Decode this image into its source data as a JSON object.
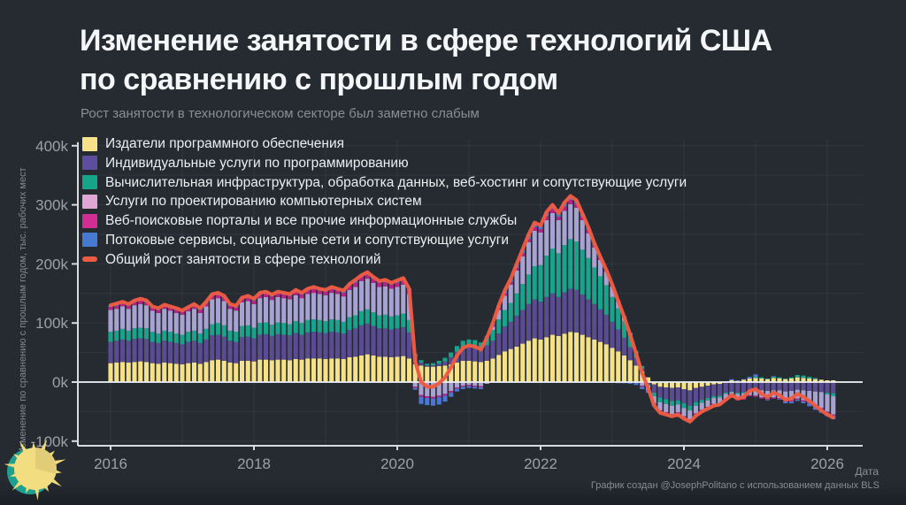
{
  "title": {
    "line1": "Изменение занятости в сфере технологий США",
    "line2": "по сравнению с прошлым годом"
  },
  "subtitle": "Рост занятости в технологическом секторе был заметно слабым",
  "credit": "График создан @JosephPolitano с использованием данных BLS",
  "axes": {
    "y_label": "Изменение по сравнению с прошлым годом, тыс. рабочих мест",
    "x_label": "Дата",
    "y_ticks": [
      {
        "label": "400k",
        "value": 400
      },
      {
        "label": "300k",
        "value": 300
      },
      {
        "label": "200k",
        "value": 200
      },
      {
        "label": "100k",
        "value": 100
      },
      {
        "label": "0k",
        "value": 0
      },
      {
        "label": "-100k",
        "value": -100
      }
    ],
    "x_ticks": [
      {
        "label": "2016",
        "value": 2016
      },
      {
        "label": "2018",
        "value": 2018
      },
      {
        "label": "2020",
        "value": 2020
      },
      {
        "label": "2022",
        "value": 2022
      },
      {
        "label": "2024",
        "value": 2024
      },
      {
        "label": "2026",
        "value": 2026
      }
    ]
  },
  "colors": {
    "background": "#262b32",
    "grid": "#ffffff",
    "zero_line": "#e8ebee",
    "axis_spine": "#d8dcdf",
    "tick_text": "#99a1a9"
  },
  "chart_data": {
    "type": "bar",
    "stacked": true,
    "overlay_line": true,
    "x_start": "2016-01",
    "x_interval": "monthly",
    "n_points": 122,
    "ylim": [
      -108,
      408
    ],
    "y_units": "thousands of jobs, change vs year ago",
    "grid": {
      "vertical": "every year",
      "horizontal_step_k": 50
    },
    "legend_position": "top-left overlay",
    "series": [
      {
        "name": "Издатели программного обеспечения",
        "color": "#f5e187",
        "legend_color": "#f7e28a",
        "values": [
          32,
          33,
          34,
          33,
          34,
          35,
          34,
          32,
          31,
          33,
          32,
          31,
          30,
          32,
          33,
          31,
          34,
          37,
          38,
          36,
          33,
          32,
          36,
          36,
          35,
          38,
          38,
          37,
          38,
          38,
          37,
          39,
          38,
          40,
          40,
          40,
          39,
          40,
          40,
          39,
          42,
          43,
          45,
          47,
          45,
          43,
          43,
          42,
          43,
          44,
          40,
          30,
          28,
          26,
          26,
          27,
          28,
          30,
          33,
          36,
          36,
          35,
          34,
          36,
          40,
          46,
          52,
          56,
          60,
          65,
          70,
          74,
          72,
          76,
          80,
          78,
          82,
          85,
          84,
          80,
          76,
          72,
          68,
          64,
          58,
          52,
          45,
          37,
          28,
          18,
          8,
          -4,
          -8,
          -9,
          -10,
          -9,
          -12,
          -14,
          -10,
          -8,
          -6,
          -4,
          -3,
          0,
          3,
          2,
          4,
          6,
          7,
          6,
          5,
          7,
          6,
          5,
          6,
          8,
          7,
          6,
          5,
          4,
          3,
          3
        ]
      },
      {
        "name": "Индивидуальные услуги по программированию",
        "color": "#5a4b92",
        "legend_color": "#5d4e9e",
        "values": [
          36,
          37,
          38,
          37,
          39,
          39,
          39,
          36,
          35,
          37,
          36,
          35,
          34,
          36,
          37,
          35,
          38,
          42,
          42,
          41,
          37,
          36,
          40,
          41,
          39,
          42,
          43,
          41,
          43,
          42,
          42,
          44,
          42,
          44,
          45,
          44,
          44,
          45,
          44,
          43,
          46,
          48,
          51,
          52,
          50,
          48,
          48,
          47,
          48,
          49,
          44,
          12,
          5,
          2,
          2,
          4,
          7,
          12,
          18,
          22,
          24,
          24,
          22,
          26,
          30,
          36,
          42,
          46,
          52,
          57,
          62,
          66,
          64,
          68,
          70,
          66,
          70,
          73,
          72,
          68,
          64,
          60,
          55,
          50,
          44,
          37,
          30,
          22,
          13,
          5,
          -4,
          -14,
          -18,
          -20,
          -22,
          -22,
          -24,
          -26,
          -24,
          -22,
          -21,
          -20,
          -20,
          -18,
          -16,
          -18,
          -17,
          -14,
          -13,
          -14,
          -15,
          -14,
          -14,
          -16,
          -15,
          -13,
          -14,
          -15,
          -16,
          -17,
          -18,
          -19
        ]
      },
      {
        "name": "Вычислительная инфраструктура, обработка данных, веб-хостинг и сопутствующие услуги",
        "color": "#19a38c",
        "legend_color": "#17a589",
        "values": [
          17,
          17,
          18,
          17,
          18,
          18,
          18,
          17,
          16,
          17,
          17,
          16,
          16,
          17,
          17,
          16,
          18,
          19,
          20,
          19,
          17,
          17,
          19,
          19,
          18,
          20,
          20,
          19,
          20,
          20,
          19,
          20,
          20,
          21,
          21,
          21,
          20,
          21,
          21,
          20,
          22,
          22,
          24,
          24,
          23,
          22,
          23,
          22,
          22,
          23,
          21,
          6,
          4,
          3,
          4,
          5,
          6,
          8,
          10,
          12,
          12,
          12,
          11,
          14,
          18,
          24,
          28,
          32,
          38,
          44,
          50,
          56,
          62,
          70,
          76,
          74,
          80,
          84,
          82,
          76,
          70,
          62,
          56,
          50,
          42,
          36,
          28,
          20,
          12,
          4,
          -2,
          -6,
          -8,
          -8,
          -8,
          -7,
          -8,
          -8,
          -6,
          -5,
          -4,
          -3,
          -3,
          -2,
          -1,
          -2,
          -2,
          0,
          2,
          2,
          1,
          2,
          2,
          1,
          2,
          4,
          4,
          3,
          2,
          0,
          -3,
          -5
        ]
      },
      {
        "name": "Услуги по проектированию компьютерных систем",
        "color": "#a8a2d2",
        "legend_color": "#dfa8d4",
        "values": [
          37,
          37,
          38,
          37,
          39,
          40,
          39,
          36,
          35,
          37,
          36,
          35,
          34,
          35,
          37,
          35,
          38,
          42,
          42,
          41,
          37,
          36,
          40,
          41,
          40,
          42,
          43,
          42,
          43,
          42,
          42,
          44,
          42,
          44,
          45,
          44,
          44,
          45,
          44,
          43,
          46,
          48,
          51,
          52,
          50,
          48,
          48,
          47,
          48,
          49,
          44,
          -8,
          -22,
          -24,
          -25,
          -23,
          -20,
          -15,
          -9,
          -6,
          -5,
          -6,
          -7,
          -3,
          6,
          16,
          24,
          31,
          39,
          47,
          55,
          60,
          55,
          60,
          60,
          56,
          58,
          59,
          57,
          50,
          42,
          34,
          28,
          23,
          18,
          12,
          8,
          4,
          0,
          -6,
          -8,
          -12,
          -14,
          -14,
          -14,
          -13,
          -14,
          -15,
          -13,
          -12,
          -11,
          -10,
          -10,
          -9,
          -8,
          -9,
          -9,
          -8,
          -10,
          -12,
          -13,
          -12,
          -13,
          -15,
          -16,
          -15,
          -17,
          -19,
          -23,
          -27,
          -29,
          -31
        ]
      },
      {
        "name": "Веб-поисковые порталы и все прочие информационные службы",
        "color": "#b52487",
        "legend_color": "#d12d92",
        "values": [
          5,
          5,
          5,
          5,
          5,
          6,
          5,
          5,
          5,
          5,
          5,
          5,
          5,
          5,
          5,
          5,
          5,
          6,
          6,
          6,
          5,
          5,
          5,
          6,
          6,
          6,
          6,
          6,
          6,
          6,
          6,
          6,
          6,
          6,
          7,
          6,
          6,
          6,
          6,
          6,
          7,
          7,
          7,
          7,
          7,
          7,
          7,
          7,
          7,
          7,
          6,
          -2,
          -3,
          -3,
          -3,
          -3,
          -3,
          -3,
          -2,
          -2,
          -2,
          -2,
          -2,
          1,
          2,
          3,
          4,
          4,
          4,
          5,
          5,
          6,
          6,
          7,
          7,
          6,
          7,
          7,
          7,
          6,
          6,
          5,
          4,
          3,
          3,
          2,
          1,
          0,
          -1,
          -2,
          -1,
          -1,
          -1,
          -2,
          -2,
          -2,
          -2,
          -2,
          -2,
          -2,
          -2,
          -2,
          -2,
          -2,
          -2,
          -2,
          -2,
          -2,
          -2,
          -2,
          -2,
          -2,
          -2,
          -2,
          -2,
          -2,
          -2,
          -2,
          -2,
          -2,
          -2,
          -2,
          -2
        ]
      },
      {
        "name": "Потоковые сервисы, социальные сети и сопутствующие услуги",
        "color": "#4a77d4",
        "legend_color": "#4679d2",
        "values": [
          3,
          4,
          3,
          3,
          3,
          3,
          3,
          2,
          3,
          2,
          2,
          3,
          2,
          2,
          3,
          3,
          3,
          3,
          3,
          3,
          3,
          3,
          3,
          3,
          3,
          3,
          3,
          3,
          3,
          3,
          3,
          3,
          3,
          3,
          3,
          3,
          3,
          4,
          3,
          4,
          3,
          5,
          3,
          4,
          3,
          3,
          4,
          3,
          4,
          4,
          3,
          -3,
          -12,
          -12,
          -12,
          -12,
          -10,
          -7,
          -5,
          -4,
          -3,
          -3,
          -3,
          1,
          4,
          5,
          5,
          6,
          7,
          7,
          8,
          8,
          6,
          7,
          7,
          6,
          7,
          7,
          6,
          5,
          4,
          2,
          1,
          0,
          0,
          -2,
          -2,
          -3,
          -4,
          -4,
          -3,
          -3,
          -3,
          -2,
          -2,
          -2,
          -2,
          -2,
          -2,
          -1,
          -1,
          -1,
          0,
          1,
          2,
          1,
          1,
          3,
          4,
          0,
          -1,
          1,
          -1,
          -3,
          -3,
          -2,
          -3,
          -5,
          -6,
          -6,
          -6,
          -6
        ]
      }
    ],
    "total_line": {
      "name": "Общий рост занятости в сфере технологий",
      "color": "#ee5b43",
      "values": "sum_of_series"
    }
  }
}
